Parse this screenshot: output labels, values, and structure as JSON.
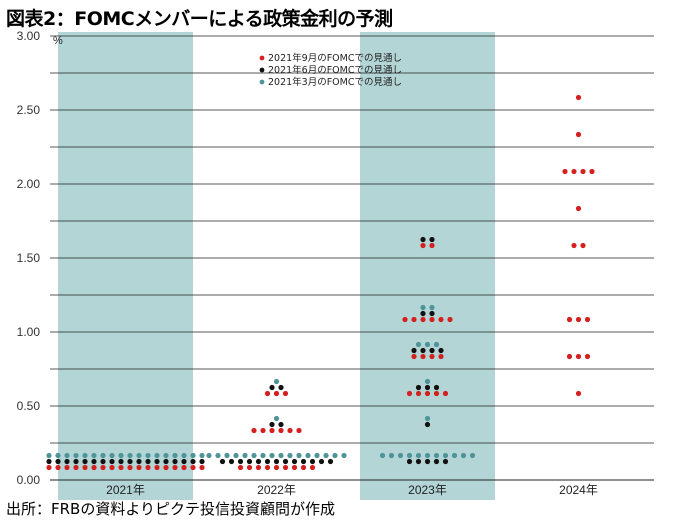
{
  "title": "図表2：FOMCメンバーによる政策金利の予測",
  "source": "出所：FRBの資料よりピクテ投信投資顧問が作成",
  "colors": {
    "shade": "#b3d5d6",
    "sep2021": "#d62020",
    "jun2021": "#111111",
    "mar2021": "#4f9499"
  },
  "chart_data": {
    "type": "scatter",
    "title": "図表2：FOMCメンバーによる政策金利の予測",
    "ylabel": "%",
    "ylim": [
      0,
      3.0
    ],
    "yticks": [
      "0.00",
      "0.50",
      "1.00",
      "1.50",
      "2.00",
      "2.50",
      "3.00"
    ],
    "categories": [
      "2021年",
      "2022年",
      "2023年",
      "2024年"
    ],
    "shaded_categories": [
      "2021年",
      "2023年"
    ],
    "grid": true,
    "legend": "top-center",
    "series": [
      {
        "name": "2021年9月のFOMCでの見通し",
        "color": "#d62020",
        "data": [
          {
            "x": "2021年",
            "y": 0.125,
            "count": 18
          },
          {
            "x": "2022年",
            "y": 0.125,
            "count": 9
          },
          {
            "x": "2022年",
            "y": 0.375,
            "count": 6
          },
          {
            "x": "2022年",
            "y": 0.625,
            "count": 3
          },
          {
            "x": "2023年",
            "y": 0.625,
            "count": 5
          },
          {
            "x": "2023年",
            "y": 0.875,
            "count": 4
          },
          {
            "x": "2023年",
            "y": 1.125,
            "count": 6
          },
          {
            "x": "2023年",
            "y": 1.625,
            "count": 2
          },
          {
            "x": "2024年",
            "y": 0.625,
            "count": 1
          },
          {
            "x": "2024年",
            "y": 0.875,
            "count": 3
          },
          {
            "x": "2024年",
            "y": 1.125,
            "count": 3
          },
          {
            "x": "2024年",
            "y": 1.625,
            "count": 2
          },
          {
            "x": "2024年",
            "y": 1.875,
            "count": 1
          },
          {
            "x": "2024年",
            "y": 2.125,
            "count": 4
          },
          {
            "x": "2024年",
            "y": 2.375,
            "count": 1
          },
          {
            "x": "2024年",
            "y": 2.625,
            "count": 1
          }
        ]
      },
      {
        "name": "2021年6月のFOMCでの見通し",
        "color": "#111111",
        "data": [
          {
            "x": "2021年",
            "y": 0.125,
            "count": 18
          },
          {
            "x": "2022年",
            "y": 0.125,
            "count": 13
          },
          {
            "x": "2022年",
            "y": 0.375,
            "count": 2
          },
          {
            "x": "2022年",
            "y": 0.625,
            "count": 2
          },
          {
            "x": "2023年",
            "y": 0.125,
            "count": 5
          },
          {
            "x": "2023年",
            "y": 0.375,
            "count": 1
          },
          {
            "x": "2023年",
            "y": 0.625,
            "count": 3
          },
          {
            "x": "2023年",
            "y": 0.875,
            "count": 4
          },
          {
            "x": "2023年",
            "y": 1.125,
            "count": 2
          },
          {
            "x": "2023年",
            "y": 1.625,
            "count": 2
          }
        ]
      },
      {
        "name": "2021年3月のFOMCでの見通し",
        "color": "#4f9499",
        "data": [
          {
            "x": "2021年",
            "y": 0.125,
            "count": 18
          },
          {
            "x": "2022年",
            "y": 0.125,
            "count": 16
          },
          {
            "x": "2022年",
            "y": 0.375,
            "count": 1
          },
          {
            "x": "2022年",
            "y": 0.625,
            "count": 1
          },
          {
            "x": "2023年",
            "y": 0.125,
            "count": 11
          },
          {
            "x": "2023年",
            "y": 0.375,
            "count": 1
          },
          {
            "x": "2023年",
            "y": 0.625,
            "count": 1
          },
          {
            "x": "2023年",
            "y": 0.875,
            "count": 3
          },
          {
            "x": "2023年",
            "y": 1.125,
            "count": 2
          }
        ]
      }
    ]
  }
}
